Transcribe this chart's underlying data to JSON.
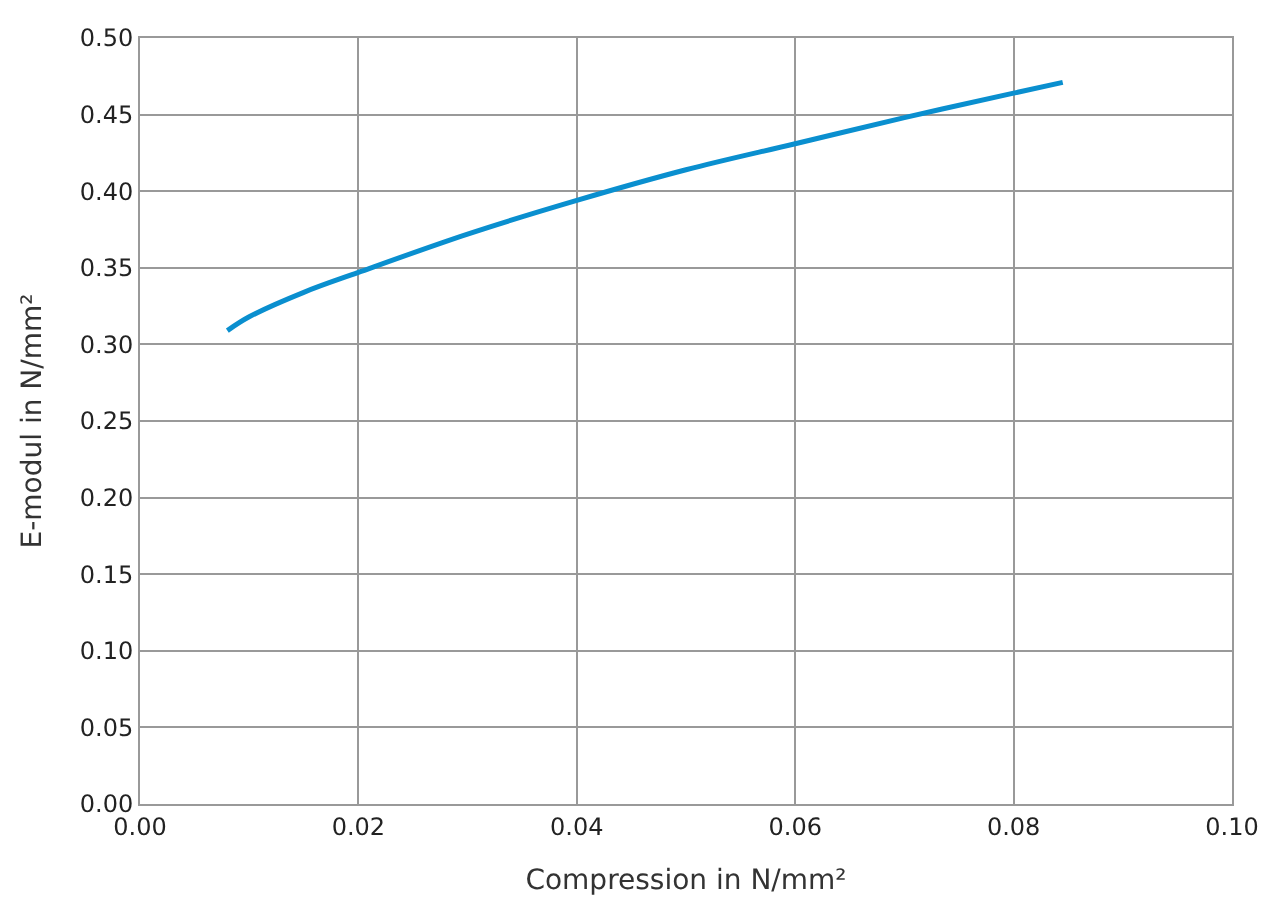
{
  "chart_data": {
    "type": "line",
    "xlabel": "Compression in N/mm²",
    "ylabel": "E-modul in N/mm²",
    "xlim": [
      0,
      0.1
    ],
    "xticks": [
      {
        "value": 0,
        "label": "0.00"
      },
      {
        "value": 0.02,
        "label": "0.02"
      },
      {
        "value": 0.04,
        "label": "0.04"
      },
      {
        "value": 0.06,
        "label": "0.06"
      },
      {
        "value": 0.08,
        "label": "0.08"
      },
      {
        "value": 0.1,
        "label": "0.10"
      }
    ],
    "ylim": [
      0,
      0.5
    ],
    "yticks": [
      {
        "value": 0,
        "label": "0.00"
      },
      {
        "value": 0.05,
        "label": "0.05"
      },
      {
        "value": 0.1,
        "label": "0.10"
      },
      {
        "value": 0.15,
        "label": "0.15"
      },
      {
        "value": 0.2,
        "label": "0.20"
      },
      {
        "value": 0.25,
        "label": "0.25"
      },
      {
        "value": 0.3,
        "label": "0.30"
      },
      {
        "value": 0.35,
        "label": "0.35"
      },
      {
        "value": 0.4,
        "label": "0.40"
      },
      {
        "value": 0.45,
        "label": "0.45"
      },
      {
        "value": 0.5,
        "label": "0.50"
      }
    ],
    "grid": true,
    "marker": "none",
    "line_style": "solid",
    "series": [
      {
        "color": "#0a8fcf",
        "x": [
          0.008,
          0.01,
          0.015,
          0.02,
          0.03,
          0.04,
          0.05,
          0.06,
          0.07,
          0.08,
          0.0845
        ],
        "values": [
          0.309,
          0.318,
          0.334,
          0.347,
          0.372,
          0.394,
          0.414,
          0.431,
          0.448,
          0.464,
          0.471
        ]
      }
    ]
  }
}
